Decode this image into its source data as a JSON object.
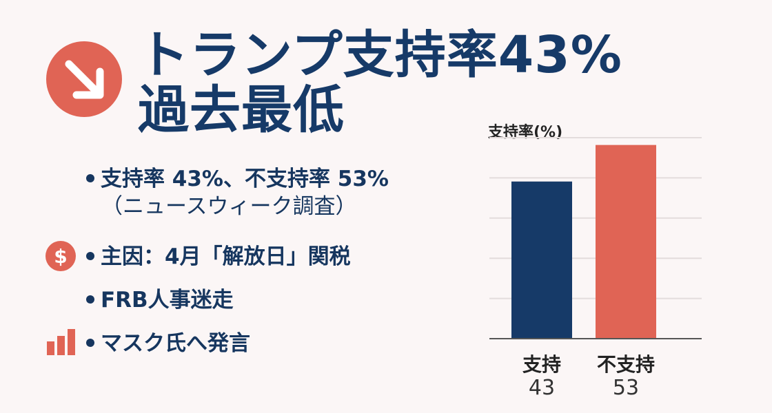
{
  "title": {
    "line1": "トランプ支持率43%",
    "line2": "過去最低"
  },
  "icons": {
    "trend": "arrow-down-right-icon",
    "money": "dollar-icon",
    "bars": "bar-chart-icon"
  },
  "colors": {
    "navy": "#163a68",
    "red": "#e06455",
    "background": "#fbf6f6"
  },
  "bullets": [
    {
      "text": "支持率 43%、不支持率 53%",
      "sub": "（ニュースウィーク調査）"
    },
    {
      "text": "主因：4月「解放日」関税"
    },
    {
      "text": "FRB人事迷走"
    },
    {
      "text": "マスク氏へ発言"
    }
  ],
  "chart_data": {
    "type": "bar",
    "ylabel": "支持率(%)",
    "categories": [
      "支持",
      "不支持"
    ],
    "values": [
      43,
      53
    ],
    "colors": [
      "#163a68",
      "#e06455"
    ],
    "ylim": [
      0,
      55
    ],
    "grid": true
  }
}
